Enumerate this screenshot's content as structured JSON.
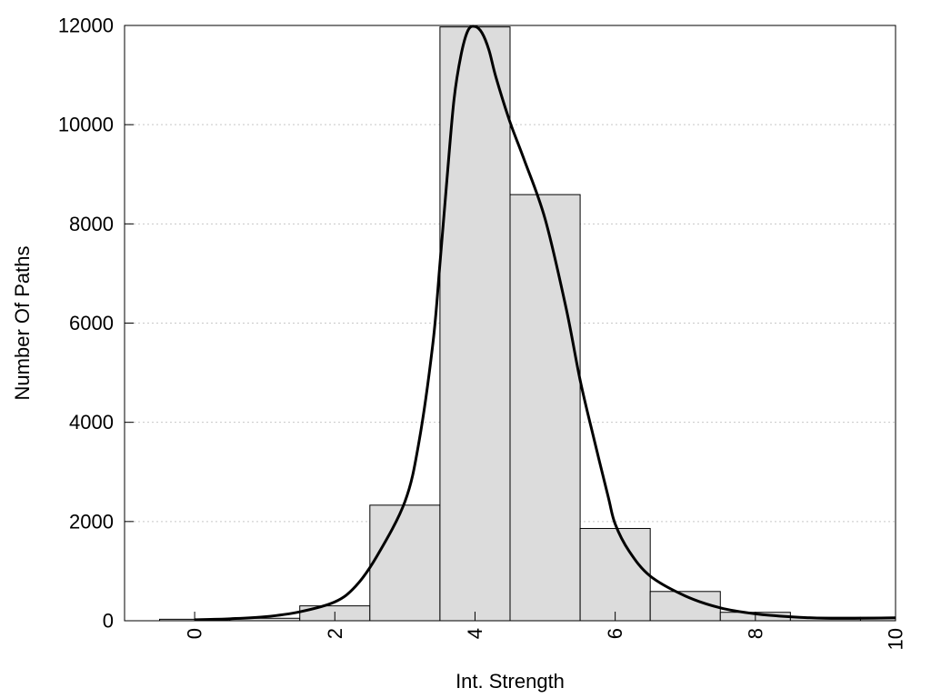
{
  "chart_data": {
    "type": "bar",
    "xlabel": "Int. Strength",
    "ylabel": "Number Of Paths",
    "xlim": [
      -1,
      10
    ],
    "ylim": [
      0,
      12000
    ],
    "x_ticks": [
      0,
      2,
      4,
      6,
      8,
      10
    ],
    "y_ticks": [
      0,
      2000,
      4000,
      6000,
      8000,
      10000,
      12000
    ],
    "x_tick_labels": [
      "0",
      "2",
      "4",
      "6",
      "8",
      "10"
    ],
    "y_tick_labels": [
      "0",
      "2000",
      "4000",
      "6000",
      "8000",
      "10000",
      "12000"
    ],
    "grid": "horizontal dotted",
    "bin_width": 1,
    "bins": [
      {
        "x": 0,
        "value": 30
      },
      {
        "x": 1,
        "value": 50
      },
      {
        "x": 2,
        "value": 300
      },
      {
        "x": 3,
        "value": 2330
      },
      {
        "x": 4,
        "value": 11970
      },
      {
        "x": 5,
        "value": 8590
      },
      {
        "x": 6,
        "value": 1860
      },
      {
        "x": 7,
        "value": 590
      },
      {
        "x": 8,
        "value": 170
      },
      {
        "x": 9,
        "value": 70
      },
      {
        "x": 10,
        "value": 70
      }
    ],
    "fit_curve": {
      "x": [
        0,
        0.5,
        1,
        1.5,
        2,
        2.3,
        2.6,
        3,
        3.2,
        3.4,
        3.5,
        3.6,
        3.7,
        3.8,
        3.9,
        4.0,
        4.1,
        4.2,
        4.3,
        4.5,
        4.7,
        5.0,
        5.3,
        5.5,
        5.7,
        5.9,
        6.0,
        6.2,
        6.5,
        7.0,
        7.5,
        8.0,
        8.5,
        9.0,
        9.5,
        10.0
      ],
      "y": [
        20,
        40,
        80,
        180,
        380,
        700,
        1300,
        2400,
        3600,
        5600,
        7200,
        8900,
        10500,
        11400,
        11900,
        11980,
        11850,
        11500,
        10950,
        10050,
        9300,
        8100,
        6300,
        4850,
        3650,
        2500,
        1950,
        1400,
        900,
        500,
        260,
        140,
        80,
        50,
        50,
        60
      ],
      "color": "#000000"
    },
    "bar_fill": "#dcdcdc",
    "bar_stroke": "#000000"
  }
}
